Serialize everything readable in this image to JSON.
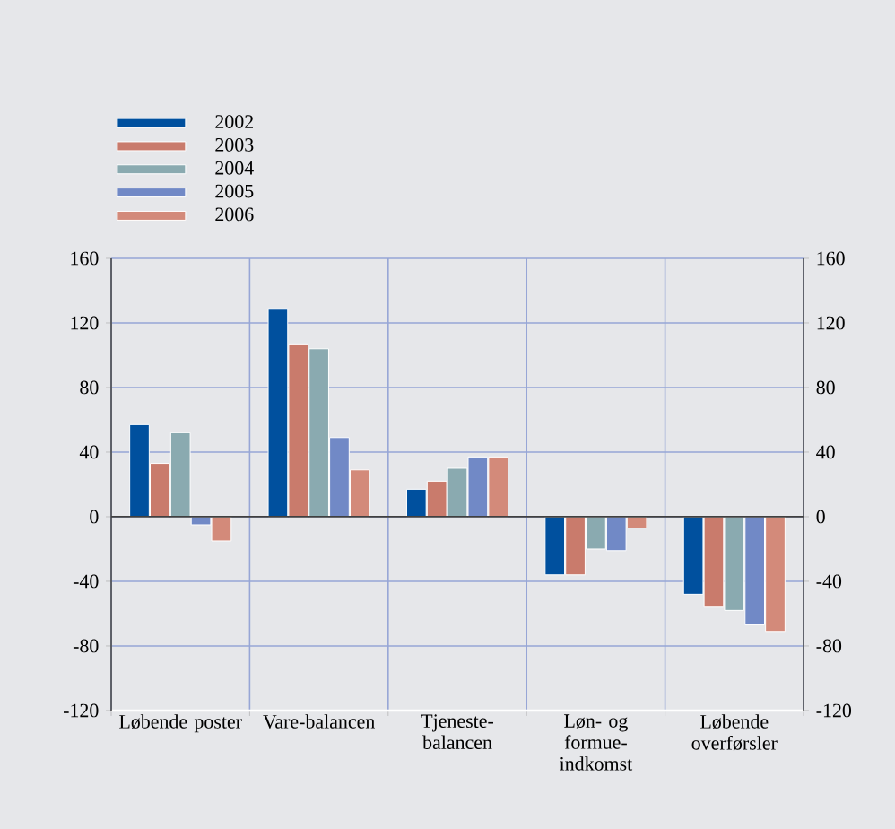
{
  "chart_data": {
    "type": "bar",
    "categories": [
      "Løbende poster",
      "Vare-balancen",
      "Tjeneste-balancen",
      "Løn- og formue-indkomst",
      "Løbende overførsler"
    ],
    "series": [
      {
        "name": "2002",
        "color": "#00509e",
        "values": [
          57,
          129,
          17,
          -36,
          -48
        ]
      },
      {
        "name": "2003",
        "color": "#c97b6c",
        "values": [
          33,
          107,
          22,
          -36,
          -56
        ]
      },
      {
        "name": "2004",
        "color": "#8aaab0",
        "values": [
          52,
          104,
          30,
          -20,
          -58
        ]
      },
      {
        "name": "2005",
        "color": "#7189c6",
        "values": [
          -5,
          49,
          37,
          -21,
          -67
        ]
      },
      {
        "name": "2006",
        "color": "#d38a7a",
        "values": [
          -15,
          29,
          37,
          -7,
          -71
        ]
      }
    ],
    "ylim": [
      -120,
      160
    ],
    "yticks": [
      -120,
      -80,
      -40,
      0,
      40,
      80,
      120,
      160
    ],
    "y2lim": [
      -120,
      160
    ],
    "y2ticks": [
      -120,
      -80,
      -40,
      0,
      40,
      80,
      120,
      160
    ],
    "grid": true,
    "legend": "top left"
  }
}
